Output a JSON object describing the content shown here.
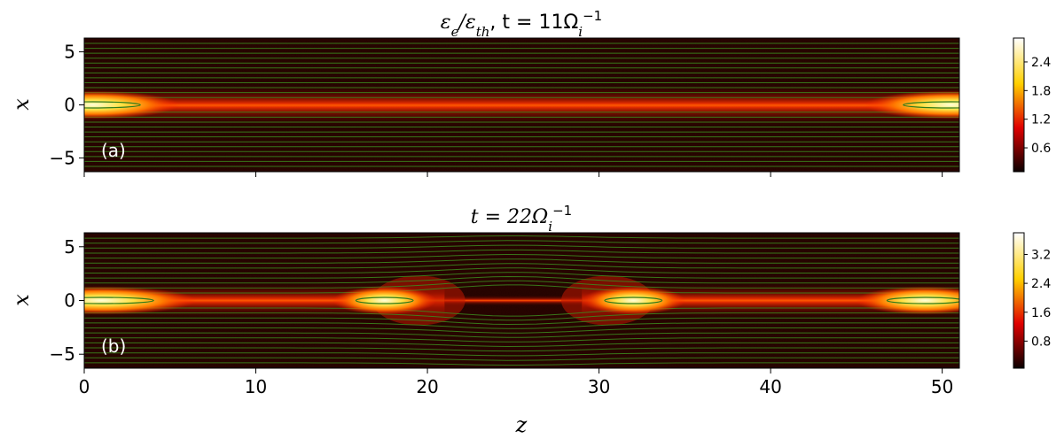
{
  "chart_data": [
    {
      "type": "heatmap",
      "panel_label": "(a)",
      "title_parts": [
        "ε",
        "e",
        "/ε",
        "th",
        ", t = 11Ω",
        "i",
        "−1"
      ],
      "xlabel": "",
      "ylabel": "x",
      "xlim": [
        0,
        51
      ],
      "ylim": [
        -6.3,
        6.3
      ],
      "x_ticks": [
        0,
        10,
        20,
        30,
        40,
        50
      ],
      "x_ticks_labeled": false,
      "y_ticks": [
        5,
        0,
        -5
      ],
      "y_tick_labels": [
        "5",
        "0",
        "−5"
      ],
      "colorscale": "hot",
      "colorbar_range": [
        0.1,
        2.9
      ],
      "colorbar_ticks": [
        0.6,
        1.2,
        1.8,
        2.4
      ],
      "colorbar_tick_labels": [
        "0.6",
        "1.2",
        "1.8",
        "2.4"
      ],
      "hot_spots": [
        {
          "z": 0.5,
          "x": 0.0,
          "width_z": 8,
          "peak": 2.8
        },
        {
          "z": 50.5,
          "x": 0.0,
          "width_z": 8,
          "peak": 2.8
        }
      ],
      "current_sheet_x": 0.0,
      "field_line_color": "#3c8c1e"
    },
    {
      "type": "heatmap",
      "panel_label": "(b)",
      "title_parts": [
        "t = 22Ω",
        "i",
        "−1"
      ],
      "xlabel": "z",
      "ylabel": "x",
      "xlim": [
        0,
        51
      ],
      "ylim": [
        -6.3,
        6.3
      ],
      "x_ticks": [
        0,
        10,
        20,
        30,
        40,
        50
      ],
      "x_tick_labels": [
        "0",
        "10",
        "20",
        "30",
        "40",
        "50"
      ],
      "x_ticks_labeled": true,
      "y_ticks": [
        5,
        0,
        -5
      ],
      "y_tick_labels": [
        "5",
        "0",
        "−5"
      ],
      "colorscale": "hot",
      "colorbar_range": [
        0.05,
        3.8
      ],
      "colorbar_ticks": [
        0.8,
        1.6,
        2.4,
        3.2
      ],
      "colorbar_tick_labels": [
        "0.8",
        "1.6",
        "2.4",
        "3.2"
      ],
      "hot_spots": [
        {
          "z": 1,
          "x": 0.0,
          "width_z": 9,
          "peak": 3.6
        },
        {
          "z": 17.5,
          "x": 0.0,
          "width_z": 4,
          "peak": 3.6
        },
        {
          "z": 32,
          "x": 0.0,
          "width_z": 4,
          "peak": 3.6
        },
        {
          "z": 49,
          "x": 0.0,
          "width_z": 6,
          "peak": 3.6
        }
      ],
      "x_point_z": 25,
      "current_sheet_x": 0.0,
      "field_line_color": "#3c8c1e"
    }
  ]
}
